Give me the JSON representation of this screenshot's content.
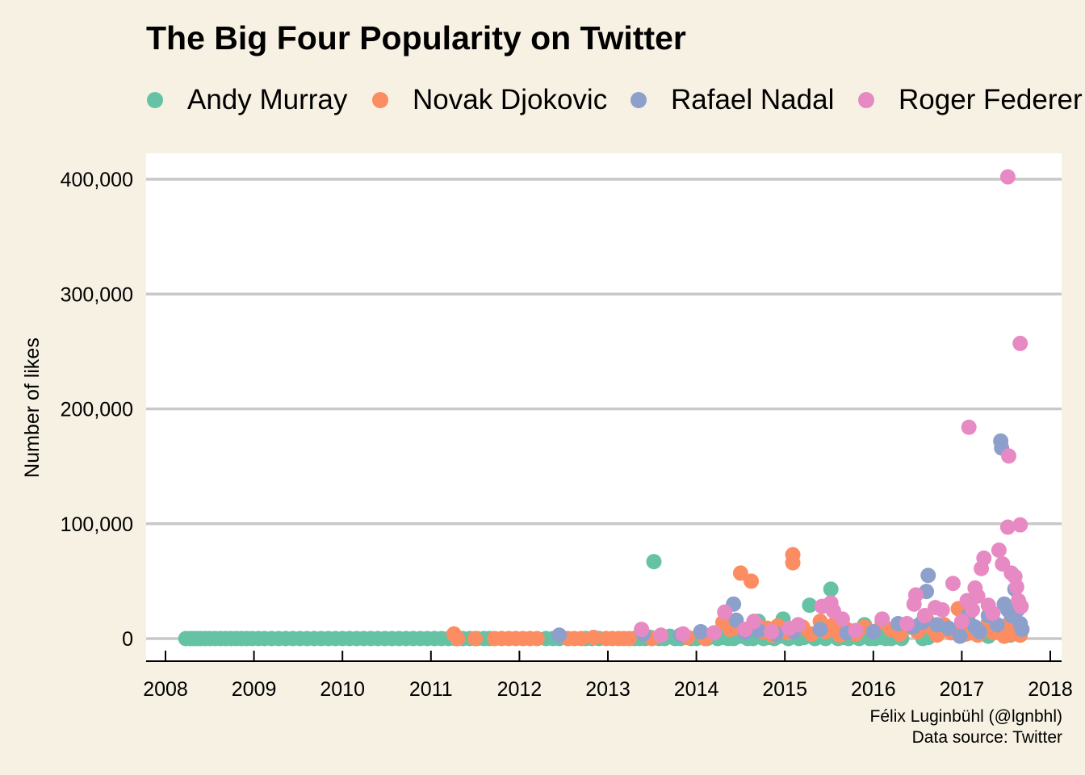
{
  "chart_data": {
    "type": "scatter",
    "title": "The Big Four Popularity on Twitter",
    "ylabel": "Number of likes",
    "xlabel": "",
    "xlim": [
      2007.8,
      2018.15
    ],
    "ylim": [
      -20000,
      425000
    ],
    "x_ticks": [
      2008,
      2009,
      2010,
      2011,
      2012,
      2013,
      2014,
      2015,
      2016,
      2017,
      2018
    ],
    "x_tick_labels": [
      "2008",
      "2009",
      "2010",
      "2011",
      "2012",
      "2013",
      "2014",
      "2015",
      "2016",
      "2017",
      "2018"
    ],
    "y_ticks": [
      0,
      100000,
      200000,
      300000,
      400000
    ],
    "y_tick_labels": [
      "0",
      "100,000",
      "200,000",
      "300,000",
      "400,000"
    ],
    "grid": "horizontal",
    "legend_position": "top",
    "series": [
      {
        "name": "Andy Murray",
        "color": "#66c2a5",
        "points": [
          [
            2008.23,
            0
          ],
          [
            2008.28,
            0
          ],
          [
            2008.32,
            0
          ],
          [
            2008.36,
            0
          ],
          [
            2008.4,
            0
          ],
          [
            2008.45,
            0
          ],
          [
            2008.5,
            0
          ],
          [
            2008.56,
            0
          ],
          [
            2008.62,
            0
          ],
          [
            2008.68,
            0
          ],
          [
            2008.74,
            0
          ],
          [
            2008.8,
            0
          ],
          [
            2008.86,
            0
          ],
          [
            2008.92,
            0
          ],
          [
            2008.98,
            0
          ],
          [
            2009.05,
            0
          ],
          [
            2009.12,
            0
          ],
          [
            2009.2,
            0
          ],
          [
            2009.28,
            0
          ],
          [
            2009.36,
            0
          ],
          [
            2009.44,
            0
          ],
          [
            2009.52,
            0
          ],
          [
            2009.6,
            0
          ],
          [
            2009.68,
            0
          ],
          [
            2009.76,
            0
          ],
          [
            2009.84,
            0
          ],
          [
            2009.92,
            0
          ],
          [
            2010.0,
            0
          ],
          [
            2010.08,
            0
          ],
          [
            2010.16,
            0
          ],
          [
            2010.24,
            0
          ],
          [
            2010.32,
            0
          ],
          [
            2010.4,
            0
          ],
          [
            2010.48,
            0
          ],
          [
            2010.56,
            0
          ],
          [
            2010.64,
            0
          ],
          [
            2010.72,
            0
          ],
          [
            2010.8,
            0
          ],
          [
            2010.88,
            0
          ],
          [
            2010.96,
            0
          ],
          [
            2011.04,
            0
          ],
          [
            2011.12,
            0
          ],
          [
            2011.2,
            0
          ],
          [
            2011.28,
            0
          ],
          [
            2011.36,
            0
          ],
          [
            2011.44,
            0
          ],
          [
            2011.52,
            0
          ],
          [
            2011.6,
            0
          ],
          [
            2011.66,
            0
          ],
          [
            2012.3,
            0
          ],
          [
            2012.38,
            0
          ],
          [
            2012.45,
            0
          ],
          [
            2012.75,
            0
          ],
          [
            2012.82,
            0
          ],
          [
            2012.9,
            0
          ],
          [
            2013.3,
            0
          ],
          [
            2013.36,
            0
          ],
          [
            2013.42,
            0
          ],
          [
            2013.48,
            1000
          ],
          [
            2013.52,
            67000
          ],
          [
            2013.58,
            0
          ],
          [
            2013.64,
            0
          ],
          [
            2013.7,
            2000
          ],
          [
            2013.76,
            0
          ],
          [
            2013.82,
            0
          ],
          [
            2013.88,
            1000
          ],
          [
            2013.94,
            0
          ],
          [
            2014.0,
            0
          ],
          [
            2014.06,
            1500
          ],
          [
            2014.12,
            0
          ],
          [
            2014.18,
            2000
          ],
          [
            2014.24,
            0
          ],
          [
            2014.3,
            1000
          ],
          [
            2014.36,
            0
          ],
          [
            2014.42,
            0
          ],
          [
            2014.5,
            2000
          ],
          [
            2014.58,
            0
          ],
          [
            2014.64,
            0
          ],
          [
            2014.7,
            15000
          ],
          [
            2014.76,
            0
          ],
          [
            2014.82,
            1000
          ],
          [
            2014.88,
            0
          ],
          [
            2014.94,
            2000
          ],
          [
            2014.98,
            17000
          ],
          [
            2015.04,
            0
          ],
          [
            2015.1,
            2000
          ],
          [
            2015.16,
            0
          ],
          [
            2015.22,
            1000
          ],
          [
            2015.28,
            29000
          ],
          [
            2015.34,
            0
          ],
          [
            2015.4,
            2000
          ],
          [
            2015.46,
            0
          ],
          [
            2015.52,
            43000
          ],
          [
            2015.55,
            8000
          ],
          [
            2015.6,
            0
          ],
          [
            2015.66,
            1000
          ],
          [
            2015.72,
            0
          ],
          [
            2015.78,
            2000
          ],
          [
            2015.84,
            0
          ],
          [
            2015.9,
            12000
          ],
          [
            2015.96,
            0
          ],
          [
            2016.02,
            0
          ],
          [
            2016.08,
            1000
          ],
          [
            2016.14,
            0
          ],
          [
            2016.2,
            0
          ],
          [
            2016.26,
            1500
          ],
          [
            2016.32,
            0
          ],
          [
            2016.5,
            11000
          ],
          [
            2016.56,
            0
          ],
          [
            2016.62,
            1000
          ],
          [
            2017.1,
            5000
          ],
          [
            2017.3,
            2000
          ],
          [
            2017.55,
            3000
          ]
        ]
      },
      {
        "name": "Novak Djokovic",
        "color": "#fc8d62",
        "points": [
          [
            2011.26,
            4000
          ],
          [
            2011.3,
            0
          ],
          [
            2011.5,
            0
          ],
          [
            2011.72,
            0
          ],
          [
            2011.8,
            0
          ],
          [
            2011.88,
            0
          ],
          [
            2011.96,
            0
          ],
          [
            2012.04,
            0
          ],
          [
            2012.12,
            0
          ],
          [
            2012.2,
            0
          ],
          [
            2012.55,
            0
          ],
          [
            2012.62,
            0
          ],
          [
            2012.7,
            0
          ],
          [
            2012.84,
            1000
          ],
          [
            2012.98,
            0
          ],
          [
            2013.05,
            0
          ],
          [
            2013.12,
            0
          ],
          [
            2013.18,
            0
          ],
          [
            2013.24,
            0
          ],
          [
            2013.5,
            0
          ],
          [
            2013.9,
            1000
          ],
          [
            2014.1,
            0
          ],
          [
            2014.3,
            14000
          ],
          [
            2014.38,
            8000
          ],
          [
            2014.45,
            9000
          ],
          [
            2014.5,
            57000
          ],
          [
            2014.62,
            50000
          ],
          [
            2014.68,
            12000
          ],
          [
            2014.74,
            6000
          ],
          [
            2014.8,
            9000
          ],
          [
            2014.86,
            3000
          ],
          [
            2014.92,
            11000
          ],
          [
            2015.03,
            5000
          ],
          [
            2015.09,
            73000
          ],
          [
            2015.09,
            66000
          ],
          [
            2015.14,
            8000
          ],
          [
            2015.2,
            10000
          ],
          [
            2015.3,
            4000
          ],
          [
            2015.4,
            15000
          ],
          [
            2015.46,
            6000
          ],
          [
            2015.55,
            12000
          ],
          [
            2015.62,
            3000
          ],
          [
            2015.7,
            8000
          ],
          [
            2015.8,
            4000
          ],
          [
            2015.9,
            10000
          ],
          [
            2016.0,
            6000
          ],
          [
            2016.1,
            14000
          ],
          [
            2016.2,
            8000
          ],
          [
            2016.3,
            4000
          ],
          [
            2016.4,
            10000
          ],
          [
            2016.5,
            6000
          ],
          [
            2016.6,
            17000
          ],
          [
            2016.66,
            9000
          ],
          [
            2016.72,
            3000
          ],
          [
            2016.8,
            12000
          ],
          [
            2016.88,
            5000
          ],
          [
            2016.96,
            26000
          ],
          [
            2016.98,
            9000
          ],
          [
            2017.05,
            4000
          ],
          [
            2017.12,
            11000
          ],
          [
            2017.18,
            3000
          ],
          [
            2017.24,
            8000
          ],
          [
            2017.3,
            14000
          ],
          [
            2017.36,
            5000
          ],
          [
            2017.42,
            9000
          ],
          [
            2017.48,
            2000
          ],
          [
            2017.52,
            12000
          ],
          [
            2017.58,
            4000
          ],
          [
            2017.62,
            7000
          ],
          [
            2017.66,
            3000
          ]
        ]
      },
      {
        "name": "Rafael Nadal",
        "color": "#8da0cb",
        "points": [
          [
            2012.45,
            3000
          ],
          [
            2013.4,
            4000
          ],
          [
            2013.82,
            3000
          ],
          [
            2014.05,
            6000
          ],
          [
            2014.42,
            30000
          ],
          [
            2014.45,
            16000
          ],
          [
            2014.55,
            5000
          ],
          [
            2014.7,
            7000
          ],
          [
            2014.9,
            4000
          ],
          [
            2015.1,
            6000
          ],
          [
            2015.4,
            8000
          ],
          [
            2015.7,
            5000
          ],
          [
            2016.0,
            6000
          ],
          [
            2016.28,
            13000
          ],
          [
            2016.45,
            10000
          ],
          [
            2016.55,
            14000
          ],
          [
            2016.6,
            41000
          ],
          [
            2016.62,
            55000
          ],
          [
            2016.72,
            12000
          ],
          [
            2016.85,
            9000
          ],
          [
            2016.98,
            2000
          ],
          [
            2017.07,
            20000
          ],
          [
            2017.15,
            10000
          ],
          [
            2017.2,
            6000
          ],
          [
            2017.3,
            20000
          ],
          [
            2017.4,
            12000
          ],
          [
            2017.44,
            172000
          ],
          [
            2017.45,
            166000
          ],
          [
            2017.48,
            30000
          ],
          [
            2017.52,
            25000
          ],
          [
            2017.56,
            20000
          ],
          [
            2017.6,
            43000
          ],
          [
            2017.63,
            25000
          ],
          [
            2017.66,
            13000
          ],
          [
            2017.68,
            8000
          ]
        ]
      },
      {
        "name": "Roger Federer",
        "color": "#e78ac3",
        "points": [
          [
            2013.38,
            8000
          ],
          [
            2013.6,
            3000
          ],
          [
            2013.85,
            4000
          ],
          [
            2014.2,
            5000
          ],
          [
            2014.32,
            23000
          ],
          [
            2014.55,
            8000
          ],
          [
            2014.65,
            15000
          ],
          [
            2014.85,
            6000
          ],
          [
            2015.05,
            9000
          ],
          [
            2015.15,
            12000
          ],
          [
            2015.42,
            28000
          ],
          [
            2015.52,
            31000
          ],
          [
            2015.55,
            24000
          ],
          [
            2015.65,
            17000
          ],
          [
            2015.8,
            7000
          ],
          [
            2016.1,
            17000
          ],
          [
            2016.38,
            13000
          ],
          [
            2016.46,
            30000
          ],
          [
            2016.48,
            38000
          ],
          [
            2016.58,
            20000
          ],
          [
            2016.7,
            27000
          ],
          [
            2016.78,
            25000
          ],
          [
            2016.9,
            48000
          ],
          [
            2017.0,
            15000
          ],
          [
            2017.06,
            33000
          ],
          [
            2017.08,
            184000
          ],
          [
            2017.12,
            25000
          ],
          [
            2017.15,
            44000
          ],
          [
            2017.18,
            37000
          ],
          [
            2017.22,
            61000
          ],
          [
            2017.25,
            70000
          ],
          [
            2017.3,
            29000
          ],
          [
            2017.35,
            22000
          ],
          [
            2017.42,
            77000
          ],
          [
            2017.46,
            65000
          ],
          [
            2017.52,
            402000
          ],
          [
            2017.53,
            159000
          ],
          [
            2017.52,
            97000
          ],
          [
            2017.56,
            57000
          ],
          [
            2017.6,
            54000
          ],
          [
            2017.62,
            45000
          ],
          [
            2017.64,
            33000
          ],
          [
            2017.66,
            99000
          ],
          [
            2017.66,
            257000
          ],
          [
            2017.67,
            28000
          ]
        ]
      }
    ]
  },
  "caption": {
    "line1": "Félix Luginbühl (@lgnbhl)",
    "line2": "Data source: Twitter"
  }
}
